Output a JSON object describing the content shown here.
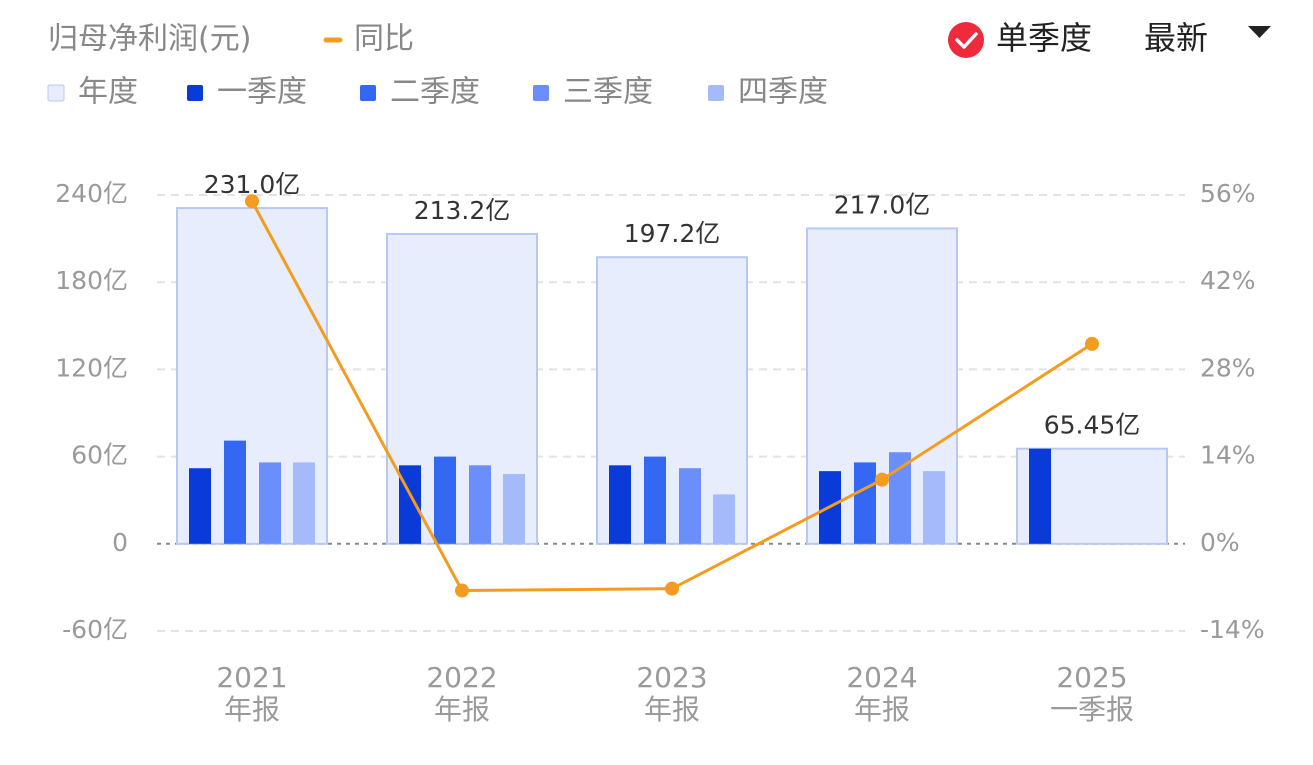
{
  "chart_data": {
    "type": "bar",
    "title": "归母净利润(元)",
    "toggle": "单季度",
    "toggle_checked": true,
    "dropdown": "最新",
    "categories": [
      "2021",
      "2022",
      "2023",
      "2024",
      "2025"
    ],
    "periods": [
      "年报",
      "年报",
      "年报",
      "年报",
      "一季报"
    ],
    "ylim": [
      -60,
      240
    ],
    "yticks": [
      {
        "value": -60,
        "label": "-60亿"
      },
      0,
      {
        "value": 60,
        "label": "60亿"
      },
      {
        "value": 120,
        "label": "120亿"
      },
      {
        "value": 180,
        "label": "180亿"
      },
      {
        "value": 240,
        "label": "240亿"
      }
    ],
    "y2lim": [
      -14,
      56
    ],
    "y2ticks": [
      {
        "value": -14,
        "label": "-14%"
      },
      {
        "value": 0,
        "label": "0%"
      },
      {
        "value": 14,
        "label": "14%"
      },
      {
        "value": 28,
        "label": "28%"
      },
      {
        "value": 42,
        "label": "42%"
      },
      {
        "value": 56,
        "label": "56%"
      }
    ],
    "grid": true,
    "series": [
      {
        "name": "年度",
        "type": "bar",
        "color": "#e7edfc",
        "values": [
          231.0,
          213.2,
          197.2,
          217.0,
          65.45
        ],
        "value_labels": [
          "231.0亿",
          "213.2亿",
          "197.2亿",
          "217.0亿",
          "65.45亿"
        ]
      },
      {
        "name": "一季度",
        "type": "bar",
        "color": "#0a3bd8",
        "values": [
          52,
          54,
          54,
          50,
          65.45
        ]
      },
      {
        "name": "二季度",
        "type": "bar",
        "color": "#3467f2",
        "values": [
          71,
          60,
          60,
          56,
          null
        ]
      },
      {
        "name": "三季度",
        "type": "bar",
        "color": "#6b8ffa",
        "values": [
          56,
          54,
          52,
          63,
          null
        ]
      },
      {
        "name": "四季度",
        "type": "bar",
        "color": "#a5bafb",
        "values": [
          56,
          48,
          34,
          50,
          null
        ]
      },
      {
        "name": "同比",
        "type": "line",
        "axis": "y2",
        "color": "#f39c1f",
        "values": [
          55.0,
          -7.5,
          -7.2,
          10.3,
          32.1
        ]
      }
    ]
  }
}
